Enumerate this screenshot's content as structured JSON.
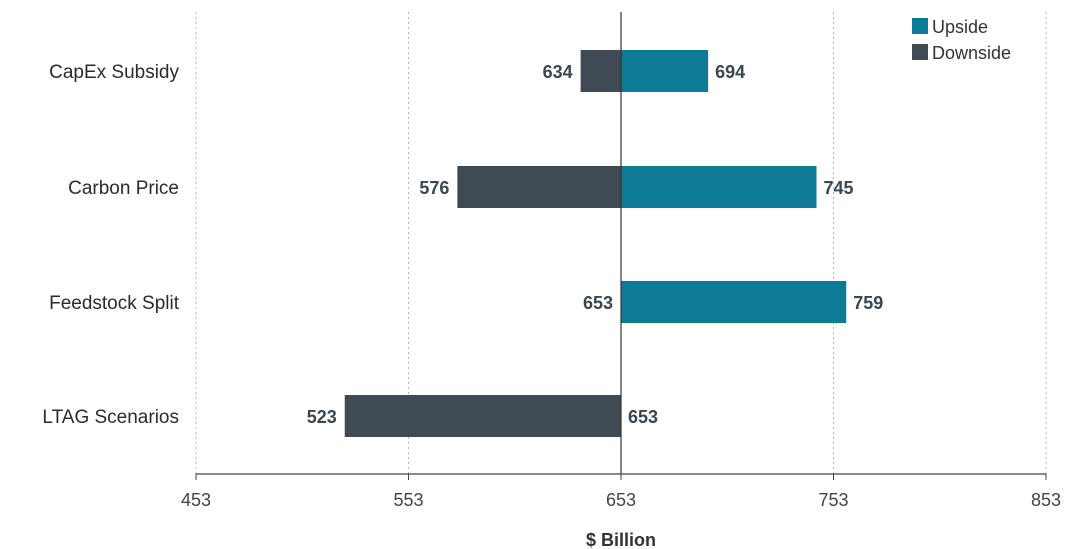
{
  "chart_data": {
    "type": "bar",
    "subtype": "tornado",
    "title": "",
    "xlabel": "$ Billion",
    "ylabel": "",
    "xlim": [
      453,
      853
    ],
    "baseline": 653,
    "xticks": [
      453,
      553,
      653,
      753,
      853
    ],
    "grid": "vertical dotted",
    "legend_position": "top-right",
    "categories": [
      "CapEx Subsidy",
      "Carbon Price",
      "Feedstock Split",
      "LTAG Scenarios"
    ],
    "series": [
      {
        "name": "Upside",
        "color": "#0e7a93",
        "values": [
          694,
          745,
          759,
          653
        ]
      },
      {
        "name": "Downside",
        "color": "#3f4a54",
        "values": [
          634,
          576,
          653,
          523
        ]
      }
    ]
  }
}
